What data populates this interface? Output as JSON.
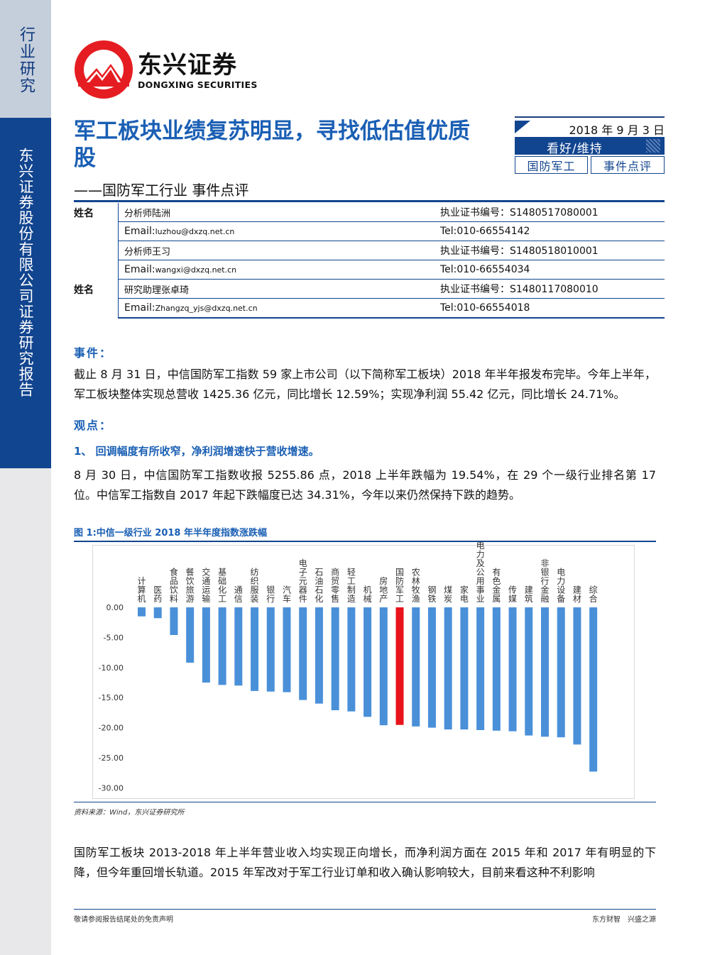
{
  "sidebar": {
    "top_label": "行业研究",
    "bottom_label": "东兴证券股份有限公司证券研究报告"
  },
  "brand": {
    "name_cn": "东兴证券",
    "name_en": "DONGXING SECURITIES"
  },
  "report": {
    "title": "军工板块业绩复苏明显，寻找低估值优质股",
    "subtitle": "——国防军工行业 事件点评",
    "date": "2018 年 9 月 3 日",
    "rating": "看好/维持",
    "tags": [
      "国防军工",
      "事件点评"
    ]
  },
  "analysts": [
    {
      "label": "姓名",
      "col1": "分析师陆洲",
      "col2": "执业证书编号：S1480517080001"
    },
    {
      "label": "",
      "col1_prefix": "Email:",
      "col1_email": "luzhou@dxzq.net.cn",
      "col2": "Tel:010-66554142"
    },
    {
      "label": "",
      "col1": "分析师王习",
      "col2": "执业证书编号：S1480518010001"
    },
    {
      "label": "",
      "col1_prefix": "Email:",
      "col1_email": "wangxi@dxzq.net.cn",
      "col2": "Tel:010-66554034"
    },
    {
      "label": "姓名",
      "col1": "研究助理张卓琦",
      "col2": "执业证书编号：S1480117080010"
    },
    {
      "label": "",
      "col1_prefix": "Email:",
      "col1_email": "Zhangzq_yjs@dxzq.net.cn",
      "col2": "Tel:010-66554018"
    }
  ],
  "event": {
    "heading": "事件：",
    "text": "截止 8 月 31 日，中信国防军工指数 59 家上市公司（以下简称军工板块）2018 年半年报发布完毕。今年上半年，军工板块整体实现总营收 1425.36 亿元，同比增长 12.59%；实现净利润 55.42 亿元，同比增长 24.71%。"
  },
  "viewpoint": {
    "heading": "观点：",
    "point1": "1、 回调幅度有所收窄，净利润增速快于营收增速。",
    "text1": "8 月 30 日，中信国防军工指数收报 5255.86 点，2018 上半年跌幅为 19.54%，在 29 个一级行业排名第 17 位。中信军工指数自 2017 年起下跌幅度已达 34.31%，今年以来仍然保持下跌的趋势。",
    "text2": "国防军工板块 2013-2018 年上半年营业收入均实现正向增长，而净利润方面在 2015 年和 2017 年有明显的下降，但今年重回增长轨道。2015 年军改对于军工行业订单和收入确认影响较大，目前来看这种不利影响"
  },
  "figure": {
    "title": "图 1:中信一级行业 2018 年半年度指数涨跌幅",
    "source": "资料来源：Wind，东兴证券研究所"
  },
  "chart_data": {
    "type": "bar",
    "categories": [
      "计算机",
      "医药",
      "食品饮料",
      "餐饮旅游",
      "交通运输",
      "基础化工",
      "通信",
      "纺织服装",
      "银行",
      "汽车",
      "电子元器件",
      "石油石化",
      "商贸零售",
      "轻工制造",
      "机械",
      "房地产",
      "国防军工",
      "农林牧渔",
      "钢铁",
      "煤炭",
      "家电",
      "电力及公用事业",
      "有色金属",
      "传媒",
      "建筑",
      "非银行金融",
      "电力设备",
      "建材",
      "综合"
    ],
    "values": [
      -1.5,
      -1.8,
      -4.6,
      -9.2,
      -12.5,
      -12.9,
      -13.0,
      -13.9,
      -14.0,
      -14.1,
      -15.4,
      -16.0,
      -17.1,
      -17.3,
      -18.2,
      -19.6,
      -19.54,
      -19.8,
      -20.0,
      -20.3,
      -20.3,
      -20.4,
      -20.5,
      -20.6,
      -21.3,
      -21.5,
      -21.6,
      -22.8,
      -27.3
    ],
    "highlight_category": "国防军工",
    "bar_color": "#4a90d9",
    "highlight_color": "#e8141b",
    "yticks": [
      "0.00",
      "-5.00",
      "-10.00",
      "-15.00",
      "-20.00",
      "-25.00",
      "-30.00"
    ],
    "ylim": [
      -30,
      0
    ],
    "grid": false,
    "legend": "none"
  },
  "footer": {
    "left": "敬请参阅报告结尾处的免责声明",
    "right": "东方财智　兴盛之源"
  }
}
